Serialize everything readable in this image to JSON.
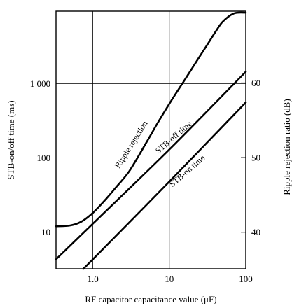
{
  "chart_data": {
    "type": "line",
    "x_axis": {
      "label": "RF capacitor capacitance value  (μF)",
      "scale": "log",
      "range": [
        0.33,
        100
      ],
      "ticks": [
        {
          "value": 1,
          "label": "1.0"
        },
        {
          "value": 10,
          "label": "10"
        },
        {
          "value": 100,
          "label": "100"
        }
      ]
    },
    "y_axis_left": {
      "label": "STB-on/off time  (ms)",
      "scale": "log",
      "range": [
        3.2,
        9500
      ],
      "ticks": [
        {
          "value": 10,
          "label": "10"
        },
        {
          "value": 100,
          "label": "100"
        },
        {
          "value": 1000,
          "label": "1 000"
        }
      ]
    },
    "y_axis_right": {
      "label": "Ripple rejection ratio  (dB)",
      "scale": "linear",
      "range": [
        35.1,
        69.6
      ],
      "ticks": [
        {
          "value": 40,
          "label": "40"
        },
        {
          "value": 50,
          "label": "50"
        },
        {
          "value": 60,
          "label": "60"
        }
      ]
    },
    "grid": true,
    "series": [
      {
        "name": "Ripple rejection",
        "axis": "right",
        "points": [
          [
            0.33,
            40.8
          ],
          [
            0.5,
            40.9
          ],
          [
            0.7,
            41.4
          ],
          [
            1.0,
            42.6
          ],
          [
            1.5,
            44.5
          ],
          [
            2,
            46.0
          ],
          [
            3,
            48.2
          ],
          [
            5,
            52.0
          ],
          [
            7,
            54.6
          ],
          [
            10,
            57.2
          ],
          [
            15,
            60.0
          ],
          [
            20,
            62.0
          ],
          [
            30,
            64.8
          ],
          [
            40,
            66.8
          ],
          [
            50,
            68.2
          ],
          [
            70,
            69.3
          ],
          [
            100,
            69.4
          ]
        ]
      },
      {
        "name": "STB-off time",
        "axis": "left",
        "points": [
          [
            0.33,
            4.3
          ],
          [
            1,
            13
          ],
          [
            10,
            130
          ],
          [
            100,
            1450
          ]
        ]
      },
      {
        "name": "STB-on time",
        "axis": "left",
        "points": [
          [
            0.75,
            3.2
          ],
          [
            1,
            4.3
          ],
          [
            10,
            48
          ],
          [
            100,
            560
          ]
        ]
      }
    ]
  }
}
